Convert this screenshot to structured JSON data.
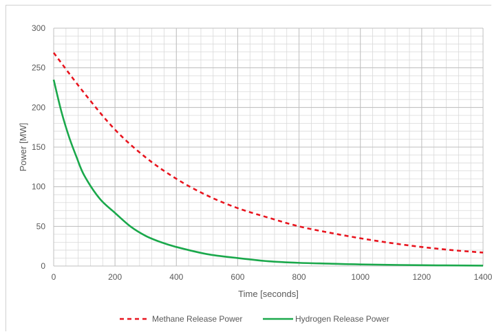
{
  "chart_data": {
    "type": "line",
    "xlabel": "Time [seconds]",
    "ylabel": "Power [MW]",
    "xlim": [
      0,
      1400
    ],
    "ylim": [
      0,
      300
    ],
    "x_ticks": [
      0,
      200,
      400,
      600,
      800,
      1000,
      1200,
      1400
    ],
    "y_ticks": [
      0,
      50,
      100,
      150,
      200,
      250,
      300
    ],
    "grid": true,
    "legend_position": "bottom",
    "series": [
      {
        "name": "Methane Release Power",
        "color": "#e8141e",
        "style": "dashed",
        "x": [
          0,
          100,
          200,
          300,
          400,
          500,
          600,
          700,
          800,
          900,
          1000,
          1100,
          1200,
          1300,
          1400
        ],
        "y": [
          269,
          218,
          172,
          137,
          110,
          89,
          73,
          61,
          50,
          42,
          35,
          29,
          24,
          20,
          17
        ]
      },
      {
        "name": "Hydrogen Release Power",
        "color": "#1aa84b",
        "style": "solid",
        "x": [
          0,
          25,
          50,
          75,
          100,
          150,
          200,
          250,
          300,
          350,
          400,
          500,
          600,
          700,
          800,
          900,
          1000,
          1200,
          1400
        ],
        "y": [
          235,
          195,
          163,
          137,
          114,
          85,
          67,
          50,
          38,
          30,
          24,
          15,
          10,
          6,
          4,
          3,
          2,
          1,
          0.5
        ]
      }
    ]
  }
}
